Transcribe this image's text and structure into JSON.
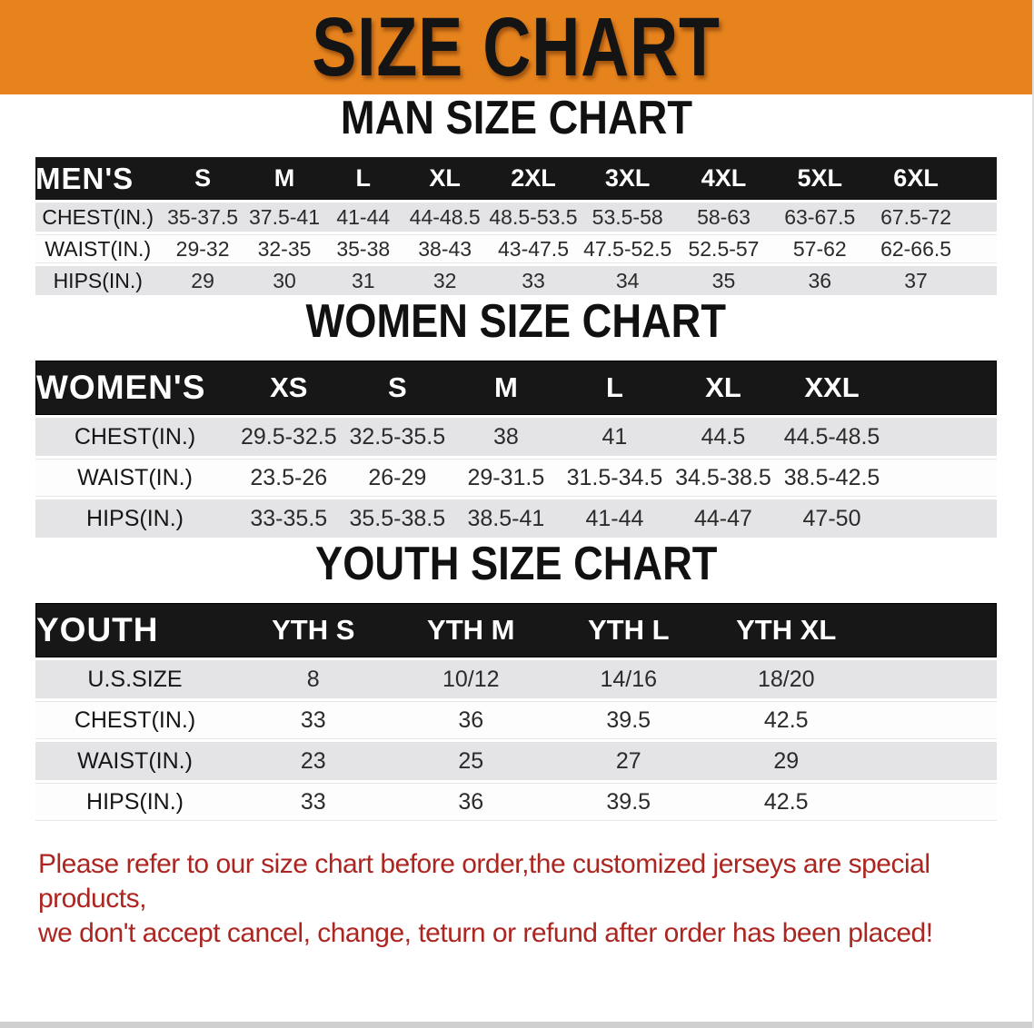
{
  "banner": {
    "title": "SIZE CHART"
  },
  "colors": {
    "banner_bg": "#E6831D",
    "table_header_bg": "#171717",
    "row_gray": "#E4E4E6",
    "note_red": "#AC2621"
  },
  "men": {
    "heading": "MAN SIZE CHART",
    "corner": "MEN'S",
    "sizes": [
      "S",
      "M",
      "L",
      "XL",
      "2XL",
      "3XL",
      "4XL",
      "5XL",
      "6XL"
    ],
    "rows": [
      {
        "label": "CHEST(IN.)",
        "values": [
          "35-37.5",
          "37.5-41",
          "41-44",
          "44-48.5",
          "48.5-53.5",
          "53.5-58",
          "58-63",
          "63-67.5",
          "67.5-72"
        ]
      },
      {
        "label": "WAIST(IN.)",
        "values": [
          "29-32",
          "32-35",
          "35-38",
          "38-43",
          "43-47.5",
          "47.5-52.5",
          "52.5-57",
          "57-62",
          "62-66.5"
        ]
      },
      {
        "label": "HIPS(IN.)",
        "values": [
          "29",
          "30",
          "31",
          "32",
          "33",
          "34",
          "35",
          "36",
          "37"
        ]
      }
    ]
  },
  "women": {
    "heading": "WOMEN SIZE CHART",
    "corner": "WOMEN'S",
    "sizes": [
      "XS",
      "S",
      "M",
      "L",
      "XL",
      "XXL"
    ],
    "rows": [
      {
        "label": "CHEST(IN.)",
        "values": [
          "29.5-32.5",
          "32.5-35.5",
          "38",
          "41",
          "44.5",
          "44.5-48.5"
        ]
      },
      {
        "label": "WAIST(IN.)",
        "values": [
          "23.5-26",
          "26-29",
          "29-31.5",
          "31.5-34.5",
          "34.5-38.5",
          "38.5-42.5"
        ]
      },
      {
        "label": "HIPS(IN.)",
        "values": [
          "33-35.5",
          "35.5-38.5",
          "38.5-41",
          "41-44",
          "44-47",
          "47-50"
        ]
      }
    ]
  },
  "youth": {
    "heading": "YOUTH SIZE CHART",
    "corner": "YOUTH",
    "sizes": [
      "YTH S",
      "YTH M",
      "YTH L",
      "YTH XL"
    ],
    "rows": [
      {
        "label": "U.S.SIZE",
        "values": [
          "8",
          "10/12",
          "14/16",
          "18/20"
        ]
      },
      {
        "label": "CHEST(IN.)",
        "values": [
          "33",
          "36",
          "39.5",
          "42.5"
        ]
      },
      {
        "label": "WAIST(IN.)",
        "values": [
          "23",
          "25",
          "27",
          "29"
        ]
      },
      {
        "label": "HIPS(IN.)",
        "values": [
          "33",
          "36",
          "39.5",
          "42.5"
        ]
      }
    ]
  },
  "note": {
    "line1": "Please refer to our size chart before order,the customized jerseys are special products,",
    "line2": "we don't accept cancel, change, teturn or refund after order has been placed!"
  }
}
